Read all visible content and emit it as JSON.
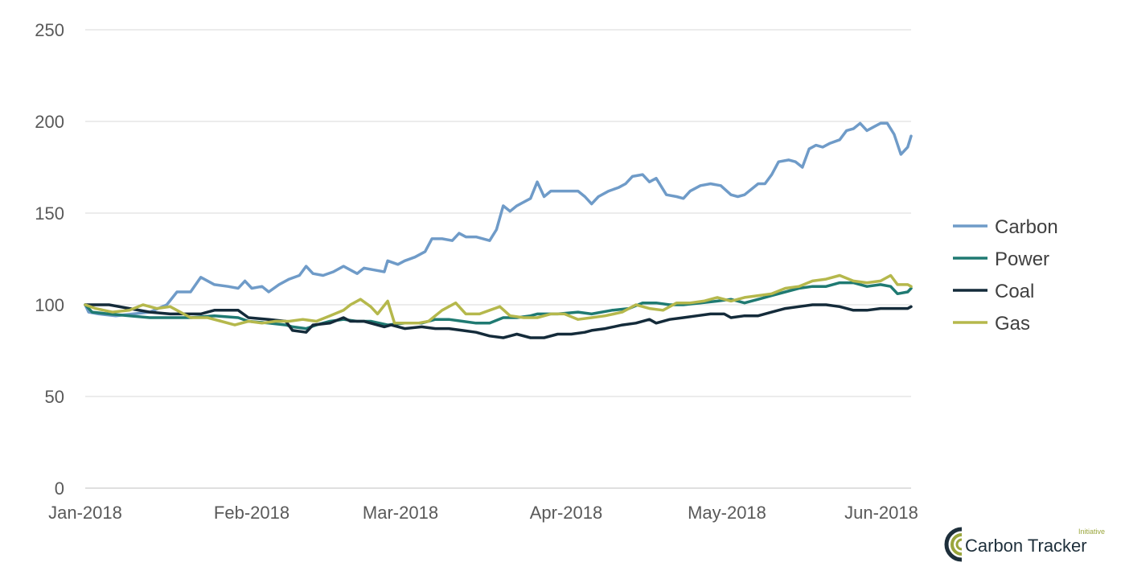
{
  "chart_data": {
    "type": "line",
    "title": "",
    "xlabel": "",
    "ylabel": "",
    "ylim": [
      0,
      250
    ],
    "yticks": [
      0,
      50,
      100,
      150,
      200,
      250
    ],
    "x_start": "Jan-2018",
    "x_end": "Jun-2018",
    "xticks": [
      "Jan-2018",
      "Feb-2018",
      "Mar-2018",
      "Apr-2018",
      "May-2018",
      "Jun-2018"
    ],
    "grid": true,
    "legend_position": "right",
    "series": [
      {
        "name": "Carbon",
        "color": "#6f9bc8",
        "points": [
          [
            "Jan-2018",
            100
          ],
          [
            "2018-01-02",
            96
          ],
          [
            "2018-01-05",
            95
          ],
          [
            "2018-01-10",
            94
          ],
          [
            "2018-01-15",
            95
          ],
          [
            "2018-01-20",
            96
          ],
          [
            "2018-01-25",
            100
          ],
          [
            "2018-01-28",
            107
          ],
          [
            "2018-02-01",
            107
          ],
          [
            "2018-02-04",
            115
          ],
          [
            "2018-02-08",
            111
          ],
          [
            "2018-02-12",
            110
          ],
          [
            "2018-02-15",
            109
          ],
          [
            "2018-02-17",
            113
          ],
          [
            "2018-02-19",
            109
          ],
          [
            "2018-02-22",
            110
          ],
          [
            "2018-02-24",
            107
          ],
          [
            "2018-02-27",
            111
          ],
          [
            "2018-03-02",
            114
          ],
          [
            "2018-03-05",
            116
          ],
          [
            "2018-03-07",
            121
          ],
          [
            "2018-03-09",
            117
          ],
          [
            "2018-03-12",
            116
          ],
          [
            "2018-03-15",
            118
          ],
          [
            "2018-03-18",
            121
          ],
          [
            "2018-03-20",
            119
          ],
          [
            "2018-03-22",
            117
          ],
          [
            "2018-03-24",
            120
          ],
          [
            "2018-03-27",
            119
          ],
          [
            "2018-03-30",
            118
          ],
          [
            "2018-03-31",
            124
          ],
          [
            "2018-04-03",
            122
          ],
          [
            "2018-04-05",
            124
          ],
          [
            "2018-04-08",
            126
          ],
          [
            "2018-04-11",
            129
          ],
          [
            "2018-04-13",
            136
          ],
          [
            "2018-04-16",
            136
          ],
          [
            "2018-04-19",
            135
          ],
          [
            "2018-04-21",
            139
          ],
          [
            "2018-04-23",
            137
          ],
          [
            "2018-04-26",
            137
          ],
          [
            "2018-04-30",
            135
          ],
          [
            "2018-05-02",
            141
          ],
          [
            "2018-05-04",
            154
          ],
          [
            "2018-05-06",
            151
          ],
          [
            "2018-05-08",
            154
          ],
          [
            "2018-05-12",
            158
          ],
          [
            "2018-05-14",
            167
          ],
          [
            "2018-05-16",
            159
          ],
          [
            "2018-05-18",
            162
          ],
          [
            "2018-05-21",
            162
          ],
          [
            "2018-05-24",
            162
          ],
          [
            "2018-05-26",
            162
          ],
          [
            "2018-05-28",
            159
          ],
          [
            "2018-05-30",
            155
          ],
          [
            "2018-06-01",
            159
          ],
          [
            "2018-06-04",
            162
          ],
          [
            "2018-06-07",
            164
          ],
          [
            "2018-06-09",
            166
          ],
          [
            "2018-06-11",
            170
          ],
          [
            "2018-06-14",
            171
          ],
          [
            "2018-06-16",
            167
          ],
          [
            "2018-06-18",
            169
          ],
          [
            "2018-06-21",
            160
          ],
          [
            "2018-06-24",
            159
          ],
          [
            "2018-06-26",
            158
          ],
          [
            "2018-06-28",
            162
          ],
          [
            "2018-07-01",
            165
          ],
          [
            "2018-07-04",
            166
          ],
          [
            "2018-07-07",
            165
          ],
          [
            "2018-07-10",
            160
          ],
          [
            "2018-07-12",
            159
          ],
          [
            "2018-07-14",
            160
          ],
          [
            "2018-07-18",
            166
          ],
          [
            "2018-07-20",
            166
          ],
          [
            "2018-07-22",
            171
          ],
          [
            "2018-07-24",
            178
          ],
          [
            "2018-07-27",
            179
          ],
          [
            "2018-07-29",
            178
          ],
          [
            "2018-07-31",
            175
          ],
          [
            "2018-08-02",
            185
          ],
          [
            "2018-08-04",
            187
          ],
          [
            "2018-08-06",
            186
          ],
          [
            "2018-08-08",
            188
          ],
          [
            "2018-08-11",
            190
          ],
          [
            "2018-08-13",
            195
          ],
          [
            "2018-08-15",
            196
          ],
          [
            "2018-08-17",
            199
          ],
          [
            "2018-08-19",
            195
          ],
          [
            "2018-08-21",
            197
          ],
          [
            "2018-08-23",
            199
          ],
          [
            "2018-08-25",
            199
          ],
          [
            "2018-08-27",
            193
          ],
          [
            "2018-08-29",
            182
          ],
          [
            "2018-08-31",
            186
          ],
          [
            "Jun-2018",
            192
          ]
        ]
      },
      {
        "name": "Power",
        "color": "#1f7a72",
        "points": [
          [
            "Jan-2018",
            100
          ],
          [
            "2018-01-03",
            96
          ],
          [
            "2018-01-08",
            95
          ],
          [
            "2018-01-14",
            94
          ],
          [
            "2018-01-20",
            93
          ],
          [
            "2018-01-26",
            93
          ],
          [
            "2018-02-01",
            93
          ],
          [
            "2018-02-08",
            94
          ],
          [
            "2018-02-15",
            93
          ],
          [
            "2018-02-18",
            91
          ],
          [
            "2018-02-24",
            90
          ],
          [
            "2018-03-01",
            89
          ],
          [
            "2018-03-03",
            88
          ],
          [
            "2018-03-07",
            87
          ],
          [
            "2018-03-10",
            89
          ],
          [
            "2018-03-14",
            91
          ],
          [
            "2018-03-18",
            92
          ],
          [
            "2018-03-22",
            91
          ],
          [
            "2018-03-26",
            91
          ],
          [
            "2018-03-31",
            89
          ],
          [
            "2018-04-05",
            90
          ],
          [
            "2018-04-10",
            90
          ],
          [
            "2018-04-14",
            92
          ],
          [
            "2018-04-18",
            92
          ],
          [
            "2018-04-22",
            91
          ],
          [
            "2018-04-26",
            90
          ],
          [
            "2018-04-30",
            90
          ],
          [
            "2018-05-04",
            93
          ],
          [
            "2018-05-08",
            93
          ],
          [
            "2018-05-12",
            94
          ],
          [
            "2018-05-14",
            95
          ],
          [
            "2018-05-20",
            95
          ],
          [
            "2018-05-26",
            96
          ],
          [
            "2018-05-30",
            95
          ],
          [
            "2018-06-05",
            97
          ],
          [
            "2018-06-10",
            98
          ],
          [
            "2018-06-14",
            101
          ],
          [
            "2018-06-18",
            101
          ],
          [
            "2018-06-22",
            100
          ],
          [
            "2018-06-26",
            100
          ],
          [
            "2018-07-01",
            101
          ],
          [
            "2018-07-06",
            102
          ],
          [
            "2018-07-10",
            103
          ],
          [
            "2018-07-14",
            101
          ],
          [
            "2018-07-18",
            103
          ],
          [
            "2018-07-22",
            105
          ],
          [
            "2018-07-26",
            107
          ],
          [
            "2018-07-30",
            109
          ],
          [
            "2018-08-03",
            110
          ],
          [
            "2018-08-07",
            110
          ],
          [
            "2018-08-11",
            112
          ],
          [
            "2018-08-15",
            112
          ],
          [
            "2018-08-19",
            110
          ],
          [
            "2018-08-23",
            111
          ],
          [
            "2018-08-26",
            110
          ],
          [
            "2018-08-28",
            106
          ],
          [
            "2018-08-31",
            107
          ],
          [
            "Jun-2018",
            109
          ]
        ]
      },
      {
        "name": "Coal",
        "color": "#142b3a",
        "points": [
          [
            "Jan-2018",
            100
          ],
          [
            "2018-01-03",
            100
          ],
          [
            "2018-01-08",
            100
          ],
          [
            "2018-01-14",
            98
          ],
          [
            "2018-01-20",
            96
          ],
          [
            "2018-01-26",
            95
          ],
          [
            "2018-02-01",
            95
          ],
          [
            "2018-02-04",
            95
          ],
          [
            "2018-02-08",
            97
          ],
          [
            "2018-02-15",
            97
          ],
          [
            "2018-02-18",
            93
          ],
          [
            "2018-02-24",
            92
          ],
          [
            "2018-03-01",
            91
          ],
          [
            "2018-03-03",
            86
          ],
          [
            "2018-03-07",
            85
          ],
          [
            "2018-03-09",
            89
          ],
          [
            "2018-03-14",
            90
          ],
          [
            "2018-03-18",
            93
          ],
          [
            "2018-03-20",
            91
          ],
          [
            "2018-03-24",
            91
          ],
          [
            "2018-03-30",
            88
          ],
          [
            "2018-04-01",
            89
          ],
          [
            "2018-04-05",
            87
          ],
          [
            "2018-04-10",
            88
          ],
          [
            "2018-04-14",
            87
          ],
          [
            "2018-04-18",
            87
          ],
          [
            "2018-04-22",
            86
          ],
          [
            "2018-04-26",
            85
          ],
          [
            "2018-04-30",
            83
          ],
          [
            "2018-05-04",
            82
          ],
          [
            "2018-05-08",
            84
          ],
          [
            "2018-05-12",
            82
          ],
          [
            "2018-05-16",
            82
          ],
          [
            "2018-05-20",
            84
          ],
          [
            "2018-05-24",
            84
          ],
          [
            "2018-05-28",
            85
          ],
          [
            "2018-05-30",
            86
          ],
          [
            "2018-06-03",
            87
          ],
          [
            "2018-06-08",
            89
          ],
          [
            "2018-06-12",
            90
          ],
          [
            "2018-06-16",
            92
          ],
          [
            "2018-06-18",
            90
          ],
          [
            "2018-06-22",
            92
          ],
          [
            "2018-06-26",
            93
          ],
          [
            "2018-06-30",
            94
          ],
          [
            "2018-07-04",
            95
          ],
          [
            "2018-07-08",
            95
          ],
          [
            "2018-07-10",
            93
          ],
          [
            "2018-07-14",
            94
          ],
          [
            "2018-07-18",
            94
          ],
          [
            "2018-07-22",
            96
          ],
          [
            "2018-07-26",
            98
          ],
          [
            "2018-07-30",
            99
          ],
          [
            "2018-08-03",
            100
          ],
          [
            "2018-08-07",
            100
          ],
          [
            "2018-08-11",
            99
          ],
          [
            "2018-08-15",
            97
          ],
          [
            "2018-08-19",
            97
          ],
          [
            "2018-08-23",
            98
          ],
          [
            "2018-08-27",
            98
          ],
          [
            "2018-08-31",
            98
          ],
          [
            "Jun-2018",
            99
          ]
        ]
      },
      {
        "name": "Gas",
        "color": "#b5b84c",
        "points": [
          [
            "Jan-2018",
            100
          ],
          [
            "2018-01-04",
            98
          ],
          [
            "2018-01-09",
            96
          ],
          [
            "2018-01-14",
            97
          ],
          [
            "2018-01-18",
            100
          ],
          [
            "2018-01-22",
            98
          ],
          [
            "2018-01-26",
            99
          ],
          [
            "2018-02-01",
            93
          ],
          [
            "2018-02-06",
            93
          ],
          [
            "2018-02-10",
            91
          ],
          [
            "2018-02-14",
            89
          ],
          [
            "2018-02-18",
            91
          ],
          [
            "2018-02-22",
            90
          ],
          [
            "2018-02-26",
            91
          ],
          [
            "2018-03-02",
            91
          ],
          [
            "2018-03-06",
            92
          ],
          [
            "2018-03-10",
            91
          ],
          [
            "2018-03-14",
            94
          ],
          [
            "2018-03-18",
            97
          ],
          [
            "2018-03-20",
            100
          ],
          [
            "2018-03-23",
            103
          ],
          [
            "2018-03-26",
            99
          ],
          [
            "2018-03-28",
            95
          ],
          [
            "2018-03-31",
            102
          ],
          [
            "2018-04-02",
            90
          ],
          [
            "2018-04-05",
            90
          ],
          [
            "2018-04-09",
            90
          ],
          [
            "2018-04-12",
            91
          ],
          [
            "2018-04-16",
            97
          ],
          [
            "2018-04-20",
            101
          ],
          [
            "2018-04-23",
            95
          ],
          [
            "2018-04-27",
            95
          ],
          [
            "2018-04-30",
            97
          ],
          [
            "2018-05-03",
            99
          ],
          [
            "2018-05-06",
            94
          ],
          [
            "2018-05-10",
            93
          ],
          [
            "2018-05-14",
            93
          ],
          [
            "2018-05-18",
            95
          ],
          [
            "2018-05-22",
            95
          ],
          [
            "2018-05-26",
            92
          ],
          [
            "2018-05-30",
            93
          ],
          [
            "2018-06-03",
            94
          ],
          [
            "2018-06-08",
            96
          ],
          [
            "2018-06-12",
            100
          ],
          [
            "2018-06-16",
            98
          ],
          [
            "2018-06-20",
            97
          ],
          [
            "2018-06-24",
            101
          ],
          [
            "2018-06-28",
            101
          ],
          [
            "2018-07-02",
            102
          ],
          [
            "2018-07-06",
            104
          ],
          [
            "2018-07-10",
            102
          ],
          [
            "2018-07-14",
            104
          ],
          [
            "2018-07-18",
            105
          ],
          [
            "2018-07-22",
            106
          ],
          [
            "2018-07-26",
            109
          ],
          [
            "2018-07-30",
            110
          ],
          [
            "2018-08-03",
            113
          ],
          [
            "2018-08-07",
            114
          ],
          [
            "2018-08-11",
            116
          ],
          [
            "2018-08-15",
            113
          ],
          [
            "2018-08-19",
            112
          ],
          [
            "2018-08-23",
            113
          ],
          [
            "2018-08-26",
            116
          ],
          [
            "2018-08-28",
            111
          ],
          [
            "2018-08-31",
            111
          ],
          [
            "Jun-2018",
            110
          ]
        ]
      }
    ]
  },
  "logo": {
    "name": "Carbon Tracker",
    "tag": "Initiative",
    "colors": [
      "#1e2f3b",
      "#9aa63c"
    ]
  }
}
